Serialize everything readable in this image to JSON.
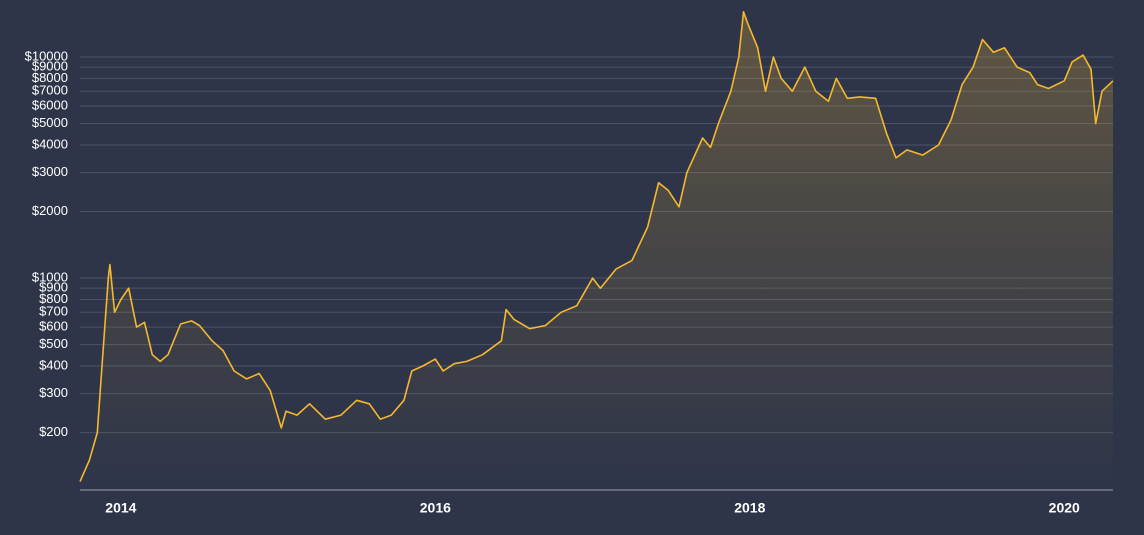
{
  "chart_data": {
    "type": "area",
    "log_scale": true,
    "grid": true,
    "color": "#f5b82e",
    "xlim": [
      2013.74,
      2020.31
    ],
    "xticks": [
      2014,
      2016,
      2018,
      2020
    ],
    "ylim": [
      110,
      18100
    ],
    "yticks": [
      {
        "value": 200,
        "label": "$200"
      },
      {
        "value": 300,
        "label": "$300"
      },
      {
        "value": 400,
        "label": "$400"
      },
      {
        "value": 500,
        "label": "$500"
      },
      {
        "value": 600,
        "label": "$600"
      },
      {
        "value": 700,
        "label": "$700"
      },
      {
        "value": 800,
        "label": "$800"
      },
      {
        "value": 900,
        "label": "$900"
      },
      {
        "value": 1000,
        "label": "$1000"
      },
      {
        "value": 2000,
        "label": "$2000"
      },
      {
        "value": 3000,
        "label": "$3000"
      },
      {
        "value": 4000,
        "label": "$4000"
      },
      {
        "value": 5000,
        "label": "$5000"
      },
      {
        "value": 6000,
        "label": "$6000"
      },
      {
        "value": 7000,
        "label": "$7000"
      },
      {
        "value": 8000,
        "label": "$8000"
      },
      {
        "value": 9000,
        "label": "$9000"
      },
      {
        "value": 10000,
        "label": "$10000"
      }
    ],
    "x": [
      2013.74,
      2013.8,
      2013.85,
      2013.88,
      2013.92,
      2013.93,
      2013.96,
      2014.0,
      2014.05,
      2014.1,
      2014.15,
      2014.2,
      2014.25,
      2014.3,
      2014.38,
      2014.45,
      2014.5,
      2014.58,
      2014.65,
      2014.72,
      2014.8,
      2014.88,
      2014.95,
      2015.02,
      2015.05,
      2015.12,
      2015.2,
      2015.3,
      2015.4,
      2015.5,
      2015.58,
      2015.65,
      2015.72,
      2015.8,
      2015.85,
      2015.92,
      2016.0,
      2016.05,
      2016.12,
      2016.2,
      2016.3,
      2016.42,
      2016.45,
      2016.5,
      2016.55,
      2016.6,
      2016.7,
      2016.8,
      2016.9,
      2017.0,
      2017.05,
      2017.15,
      2017.25,
      2017.35,
      2017.42,
      2017.48,
      2017.55,
      2017.6,
      2017.7,
      2017.75,
      2017.8,
      2017.88,
      2017.93,
      2017.96,
      2017.99,
      2018.05,
      2018.1,
      2018.15,
      2018.2,
      2018.27,
      2018.35,
      2018.42,
      2018.5,
      2018.55,
      2018.62,
      2018.7,
      2018.8,
      2018.87,
      2018.93,
      2019.0,
      2019.1,
      2019.2,
      2019.28,
      2019.35,
      2019.42,
      2019.48,
      2019.55,
      2019.62,
      2019.7,
      2019.78,
      2019.83,
      2019.9,
      2020.0,
      2020.05,
      2020.12,
      2020.17,
      2020.2,
      2020.24,
      2020.31
    ],
    "values": [
      120,
      150,
      200,
      400,
      1000,
      1150,
      700,
      800,
      900,
      600,
      630,
      450,
      420,
      450,
      620,
      640,
      610,
      520,
      470,
      380,
      350,
      370,
      310,
      210,
      250,
      240,
      270,
      230,
      240,
      280,
      270,
      230,
      240,
      280,
      380,
      400,
      430,
      380,
      410,
      420,
      450,
      520,
      720,
      650,
      620,
      590,
      610,
      700,
      750,
      1000,
      900,
      1100,
      1200,
      1700,
      2700,
      2500,
      2100,
      3000,
      4300,
      3900,
      5000,
      7000,
      10000,
      16000,
      14000,
      11000,
      7000,
      10000,
      8000,
      7000,
      9000,
      7000,
      6300,
      8000,
      6500,
      6600,
      6500,
      4500,
      3500,
      3800,
      3600,
      4000,
      5200,
      7500,
      9000,
      12000,
      10500,
      11000,
      9000,
      8500,
      7500,
      7200,
      7800,
      9500,
      10200,
      8800,
      5000,
      7000,
      7800
    ]
  }
}
